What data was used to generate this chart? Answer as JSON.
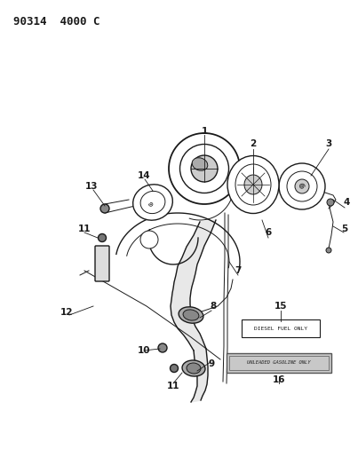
{
  "title": "90314  4000 C",
  "title_fontsize": 9,
  "bg_color": "#ffffff",
  "line_color": "#1a1a1a",
  "fig_width": 4.03,
  "fig_height": 5.33,
  "dpi": 100,
  "label15_text": "DIESEL FUEL ONLY",
  "label16_text": "UNLEADED GASOLINE ONLY"
}
